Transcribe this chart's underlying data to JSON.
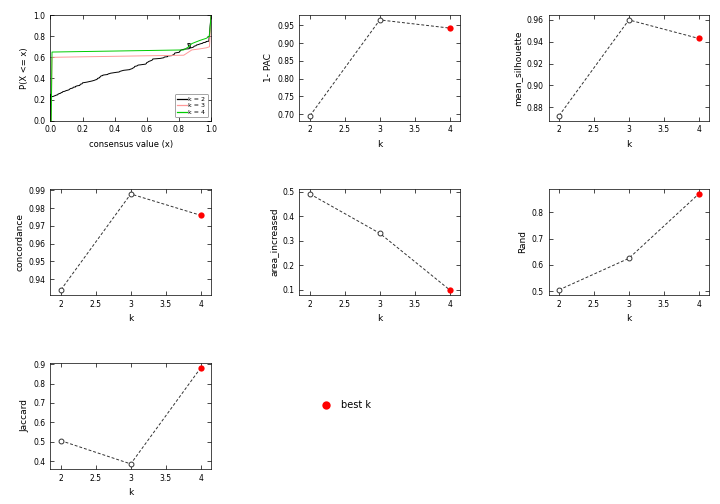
{
  "k_vals": [
    2,
    3,
    4
  ],
  "pac_1_vals": [
    0.695,
    0.965,
    0.942
  ],
  "pac_best_k": 4,
  "mean_sil_vals": [
    0.872,
    0.96,
    0.943
  ],
  "mean_sil_best_k": 4,
  "concordance_vals": [
    0.934,
    0.988,
    0.976
  ],
  "concordance_best_k": 4,
  "area_increased_vals": [
    0.49,
    0.33,
    0.1
  ],
  "area_increased_best_k": 4,
  "rand_vals": [
    0.505,
    0.625,
    0.87
  ],
  "rand_best_k": 4,
  "jaccard_vals": [
    0.505,
    0.385,
    0.88
  ],
  "jaccard_best_k": 4,
  "best_k_marker_color": "#FF0000",
  "line_color": "#333333",
  "ecdf_colors": [
    "#000000",
    "#FF9999",
    "#00CC00"
  ],
  "bg_color": "#FFFFFF"
}
